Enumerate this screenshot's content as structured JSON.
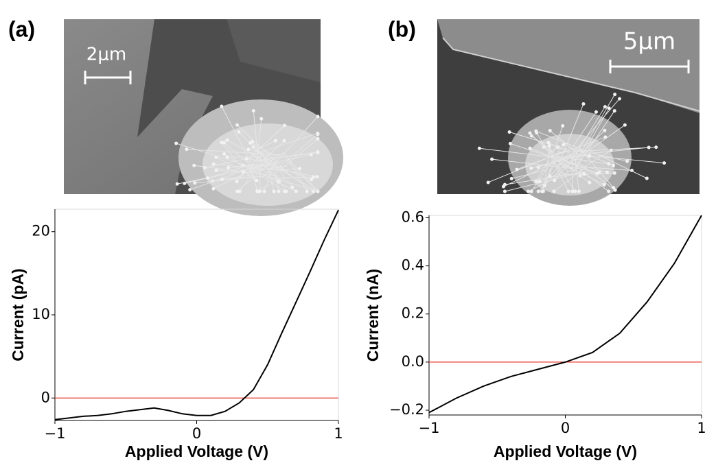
{
  "chart_data": [
    {
      "type": "line",
      "panel_label": "(a)",
      "scale_bar": "2μm",
      "x_label": "Applied Voltage (V)",
      "y_label": "Current (pA)",
      "x": [
        -1,
        -0.9,
        -0.8,
        -0.7,
        -0.6,
        -0.5,
        -0.4,
        -0.3,
        -0.2,
        -0.1,
        0,
        0.1,
        0.2,
        0.3,
        0.4,
        0.5,
        0.6,
        0.7,
        0.8,
        0.9,
        1
      ],
      "values": [
        -2.6,
        -2.4,
        -2.2,
        -2.1,
        -1.9,
        -1.6,
        -1.4,
        -1.2,
        -1.5,
        -1.9,
        -2.1,
        -2.1,
        -1.6,
        -0.6,
        1.0,
        4.0,
        7.8,
        11.5,
        15.2,
        19.0,
        22.6
      ],
      "color": "#000000",
      "reference_line": {
        "value": 0,
        "color": "#e8382f"
      },
      "xlim": [
        -1,
        1
      ],
      "xticks": [
        {
          "value": -1,
          "label": "−1"
        },
        0,
        1
      ],
      "ylim": [
        -2.7,
        22.7
      ],
      "yticks": [
        0,
        10,
        20
      ]
    },
    {
      "type": "line",
      "panel_label": "(b)",
      "scale_bar": "5μm",
      "x_label": "Applied Voltage (V)",
      "y_label": "Current (nA)",
      "x": [
        -1,
        -0.8,
        -0.6,
        -0.4,
        -0.2,
        0,
        0.2,
        0.4,
        0.6,
        0.8,
        1
      ],
      "values": [
        -0.21,
        -0.15,
        -0.1,
        -0.06,
        -0.03,
        0.0,
        0.04,
        0.12,
        0.25,
        0.41,
        0.61
      ],
      "color": "#000000",
      "reference_line": {
        "value": 0,
        "color": "#e8382f"
      },
      "xlim": [
        -1,
        1
      ],
      "xticks": [
        {
          "value": -1,
          "label": "−1"
        },
        0,
        1
      ],
      "ylim": [
        -0.22,
        0.61
      ],
      "yticks": [
        {
          "value": -0.2,
          "label": "−0.2"
        },
        {
          "value": 0,
          "label": "0.0"
        },
        0.2,
        0.4,
        0.6
      ]
    }
  ]
}
